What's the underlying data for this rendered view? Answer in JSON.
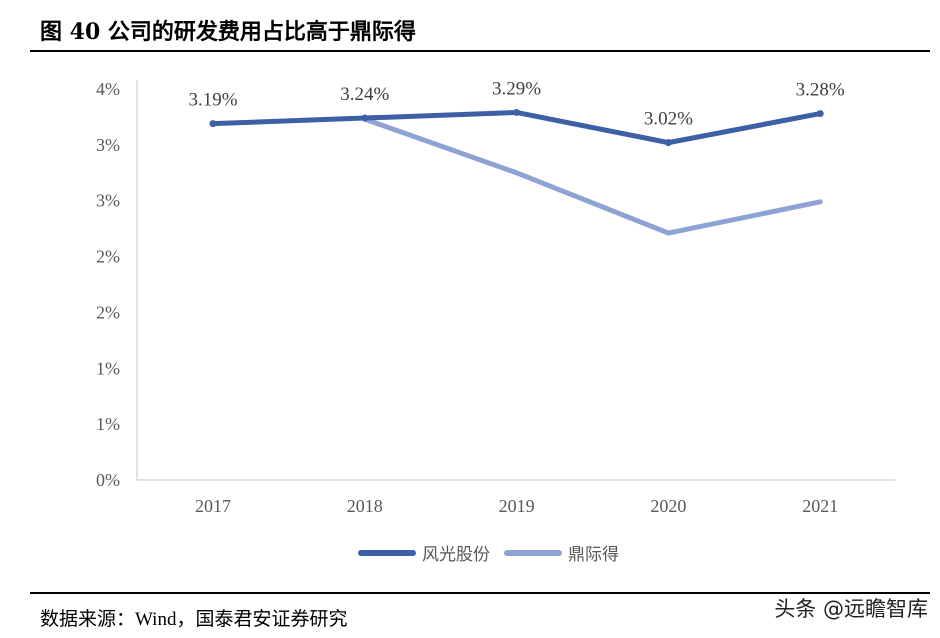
{
  "title": "图 40 公司的研发费用占比高于鼎际得",
  "source": "数据来源：Wind，国泰君安证券研究",
  "watermark": "头条 @远瞻智库",
  "chart_data": {
    "type": "line",
    "title": "",
    "xlabel": "",
    "ylabel": "",
    "categories": [
      "2017",
      "2018",
      "2019",
      "2020",
      "2021"
    ],
    "ylim": [
      0,
      3.5
    ],
    "yticks": [
      0,
      0.5,
      1.0,
      1.5,
      2.0,
      2.5,
      3.0,
      3.5
    ],
    "ytick_labels": [
      "0%",
      "1%",
      "1%",
      "2%",
      "2%",
      "3%",
      "3%",
      "4%"
    ],
    "grid": false,
    "legend_position": "bottom",
    "series": [
      {
        "name": "风光股份",
        "color": "#3c5fa6",
        "values": [
          3.19,
          3.24,
          3.29,
          3.02,
          3.28
        ],
        "data_labels": [
          "3.19%",
          "3.24%",
          "3.29%",
          "3.02%",
          "3.28%"
        ]
      },
      {
        "name": "鼎际得",
        "color": "#8ea2d4",
        "values": [
          null,
          3.23,
          2.75,
          2.21,
          2.49
        ]
      }
    ]
  }
}
